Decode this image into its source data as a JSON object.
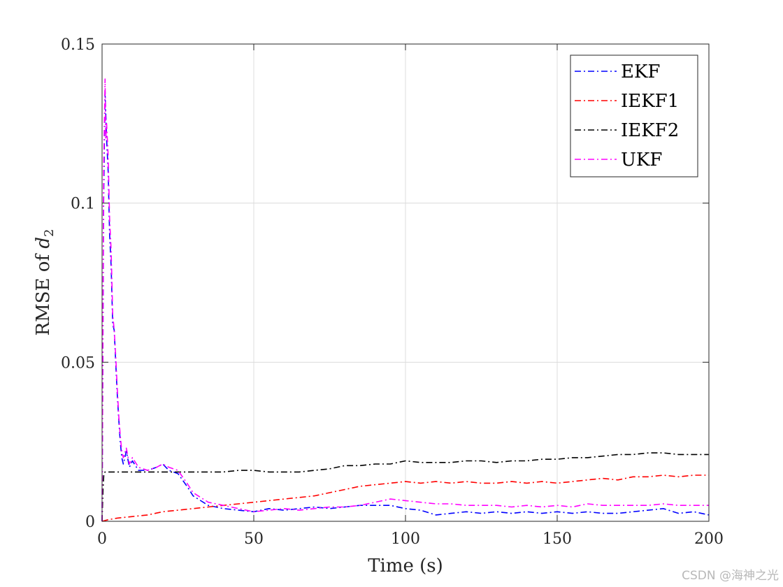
{
  "chart_data": {
    "type": "line",
    "xlabel": "Time (s)",
    "ylabel_prefix": "RMSE of ",
    "ylabel_var": "d",
    "ylabel_sub": "2",
    "xlim": [
      0,
      200
    ],
    "ylim": [
      0,
      0.15
    ],
    "xticks": [
      0,
      50,
      100,
      150,
      200
    ],
    "xtick_labels": [
      "0",
      "50",
      "100",
      "150",
      "200"
    ],
    "yticks": [
      0,
      0.05,
      0.1,
      0.15
    ],
    "ytick_labels": [
      "0",
      "0.05",
      "0.1",
      "0.15"
    ],
    "grid": true,
    "legend_position": "top-right",
    "series": [
      {
        "name": "EKF",
        "color": "#0000ff",
        "x": [
          0,
          0.5,
          1,
          1.5,
          2,
          2.5,
          3,
          3.5,
          4,
          4.5,
          5,
          5.5,
          6,
          6.5,
          7,
          8,
          9,
          10,
          12,
          15,
          18,
          20,
          22,
          25,
          28,
          30,
          35,
          40,
          45,
          50,
          55,
          60,
          65,
          70,
          75,
          80,
          85,
          90,
          95,
          100,
          105,
          110,
          115,
          120,
          125,
          130,
          135,
          140,
          145,
          150,
          155,
          160,
          165,
          170,
          175,
          180,
          185,
          190,
          195,
          200
        ],
        "values": [
          0,
          0.1,
          0.135,
          0.12,
          0.11,
          0.09,
          0.08,
          0.062,
          0.06,
          0.05,
          0.04,
          0.032,
          0.025,
          0.02,
          0.018,
          0.022,
          0.017,
          0.019,
          0.016,
          0.016,
          0.017,
          0.018,
          0.016,
          0.015,
          0.011,
          0.008,
          0.005,
          0.004,
          0.0035,
          0.003,
          0.004,
          0.0035,
          0.004,
          0.0045,
          0.004,
          0.0045,
          0.005,
          0.005,
          0.005,
          0.004,
          0.0035,
          0.002,
          0.0025,
          0.003,
          0.0025,
          0.003,
          0.0025,
          0.003,
          0.0025,
          0.003,
          0.0025,
          0.003,
          0.0025,
          0.0025,
          0.003,
          0.0035,
          0.004,
          0.0025,
          0.003,
          0.002
        ]
      },
      {
        "name": "IEKF1",
        "color": "#ff0000",
        "x": [
          0,
          2,
          5,
          10,
          15,
          20,
          25,
          30,
          35,
          40,
          45,
          50,
          55,
          60,
          65,
          70,
          75,
          80,
          85,
          90,
          95,
          100,
          105,
          110,
          115,
          120,
          125,
          130,
          135,
          140,
          145,
          150,
          155,
          160,
          165,
          170,
          175,
          180,
          185,
          190,
          195,
          200
        ],
        "values": [
          0,
          0.0005,
          0.001,
          0.0015,
          0.002,
          0.003,
          0.0035,
          0.004,
          0.0045,
          0.005,
          0.0055,
          0.006,
          0.0065,
          0.007,
          0.0075,
          0.008,
          0.009,
          0.01,
          0.011,
          0.0115,
          0.012,
          0.0125,
          0.012,
          0.0125,
          0.012,
          0.0125,
          0.012,
          0.012,
          0.0125,
          0.012,
          0.0125,
          0.012,
          0.0125,
          0.013,
          0.0135,
          0.013,
          0.014,
          0.014,
          0.0145,
          0.014,
          0.0145,
          0.0145
        ]
      },
      {
        "name": "IEKF2",
        "color": "#000000",
        "x": [
          0,
          0.3,
          0.6,
          1,
          2,
          5,
          10,
          15,
          20,
          25,
          30,
          35,
          40,
          45,
          50,
          55,
          60,
          65,
          70,
          75,
          80,
          85,
          90,
          95,
          100,
          105,
          110,
          115,
          120,
          125,
          130,
          135,
          140,
          145,
          150,
          155,
          160,
          165,
          170,
          175,
          180,
          185,
          190,
          195,
          200
        ],
        "values": [
          0,
          0.01,
          0.015,
          0.0155,
          0.0155,
          0.0155,
          0.0155,
          0.0155,
          0.0155,
          0.0155,
          0.0155,
          0.0155,
          0.0155,
          0.016,
          0.016,
          0.0155,
          0.0155,
          0.0155,
          0.016,
          0.0165,
          0.0175,
          0.0175,
          0.018,
          0.018,
          0.019,
          0.0185,
          0.0185,
          0.0185,
          0.019,
          0.019,
          0.0185,
          0.019,
          0.019,
          0.0195,
          0.0195,
          0.02,
          0.02,
          0.0205,
          0.021,
          0.021,
          0.0215,
          0.0215,
          0.021,
          0.021,
          0.021
        ]
      },
      {
        "name": "UKF",
        "color": "#ff00ff",
        "x": [
          0,
          0.5,
          1,
          1.2,
          1.5,
          2,
          2.5,
          3,
          3.5,
          4,
          4.5,
          5,
          5.5,
          6,
          6.5,
          7,
          8,
          9,
          10,
          12,
          15,
          18,
          20,
          22,
          25,
          28,
          30,
          35,
          40,
          45,
          50,
          55,
          60,
          65,
          70,
          75,
          80,
          85,
          90,
          95,
          100,
          105,
          110,
          115,
          120,
          125,
          130,
          135,
          140,
          145,
          150,
          155,
          160,
          165,
          170,
          175,
          180,
          185,
          190,
          195,
          200
        ],
        "values": [
          0,
          0.11,
          0.139,
          0.12,
          0.125,
          0.115,
          0.095,
          0.085,
          0.065,
          0.06,
          0.052,
          0.042,
          0.033,
          0.027,
          0.022,
          0.02,
          0.023,
          0.018,
          0.02,
          0.017,
          0.016,
          0.017,
          0.018,
          0.017,
          0.016,
          0.012,
          0.009,
          0.006,
          0.005,
          0.004,
          0.003,
          0.0035,
          0.004,
          0.0035,
          0.004,
          0.0045,
          0.0045,
          0.005,
          0.006,
          0.007,
          0.0065,
          0.006,
          0.0055,
          0.0055,
          0.005,
          0.005,
          0.005,
          0.0045,
          0.005,
          0.0045,
          0.005,
          0.0045,
          0.0055,
          0.005,
          0.005,
          0.005,
          0.005,
          0.0055,
          0.005,
          0.005,
          0.005
        ]
      }
    ]
  },
  "watermark": "CSDN @海神之光"
}
